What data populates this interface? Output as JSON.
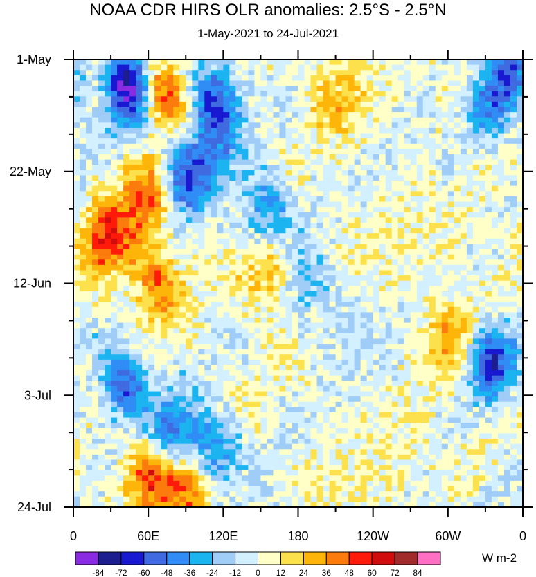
{
  "chart_data": {
    "type": "heatmap",
    "title": "NOAA CDR HIRS OLR anomalies: 2.5°S - 2.5°N",
    "subtitle": "1-May-2021 to 24-Jul-2021",
    "x_tick_labels": [
      "0",
      "60E",
      "120E",
      "180",
      "120W",
      "60W",
      "0"
    ],
    "x_range": [
      0,
      360
    ],
    "y_tick_labels": [
      "1-May",
      "22-May",
      "12-Jun",
      "3-Jul",
      "24-Jul"
    ],
    "units": "W m-2",
    "colorbar_labels": [
      "-84",
      "-72",
      "-60",
      "-48",
      "-36",
      "-24",
      "-12",
      "0",
      "12",
      "24",
      "36",
      "48",
      "60",
      "72",
      "84"
    ],
    "colors": [
      "#8a2be2",
      "#1c1e8f",
      "#1919d2",
      "#3f6ae0",
      "#2f8df5",
      "#1cb4f0",
      "#9fcdf7",
      "#d2f0ff",
      "#ffffc8",
      "#fde14c",
      "#fdb50a",
      "#fb7b0d",
      "#ff1a0a",
      "#d00c0c",
      "#a12a2a",
      "#ff6fc3"
    ],
    "features": [
      {
        "lon": 45,
        "date": "2021-05-06",
        "anomaly": -90
      },
      {
        "lon": 70,
        "date": "2021-05-07",
        "anomaly": 60
      },
      {
        "lon": 115,
        "date": "2021-05-08",
        "anomaly": -55
      },
      {
        "lon": 350,
        "date": "2021-05-02",
        "anomaly": -45
      },
      {
        "lon": 60,
        "date": "2021-05-27",
        "anomaly": 55
      },
      {
        "lon": 85,
        "date": "2021-05-24",
        "anomaly": -55
      },
      {
        "lon": 110,
        "date": "2021-05-18",
        "anomaly": -40
      },
      {
        "lon": 155,
        "date": "2021-05-30",
        "anomaly": -45
      },
      {
        "lon": 27,
        "date": "2021-06-04",
        "anomaly": 55
      },
      {
        "lon": 65,
        "date": "2021-06-12",
        "anomaly": 40
      },
      {
        "lon": 155,
        "date": "2021-06-10",
        "anomaly": 35
      },
      {
        "lon": 190,
        "date": "2021-06-12",
        "anomaly": -30
      },
      {
        "lon": 40,
        "date": "2021-07-01",
        "anomaly": -55
      },
      {
        "lon": 80,
        "date": "2021-07-10",
        "anomaly": -45
      },
      {
        "lon": 110,
        "date": "2021-07-14",
        "anomaly": -55
      },
      {
        "lon": 60,
        "date": "2021-07-18",
        "anomaly": 50
      },
      {
        "lon": 95,
        "date": "2021-07-20",
        "anomaly": 55
      },
      {
        "lon": 335,
        "date": "2021-06-27",
        "anomaly": -60
      },
      {
        "lon": 335,
        "date": "2021-05-10",
        "anomaly": -35
      },
      {
        "lon": 300,
        "date": "2021-06-22",
        "anomaly": 35
      },
      {
        "lon": 220,
        "date": "2021-06-20",
        "anomaly": -15
      },
      {
        "lon": 215,
        "date": "2021-05-10",
        "anomaly": 20
      }
    ]
  }
}
